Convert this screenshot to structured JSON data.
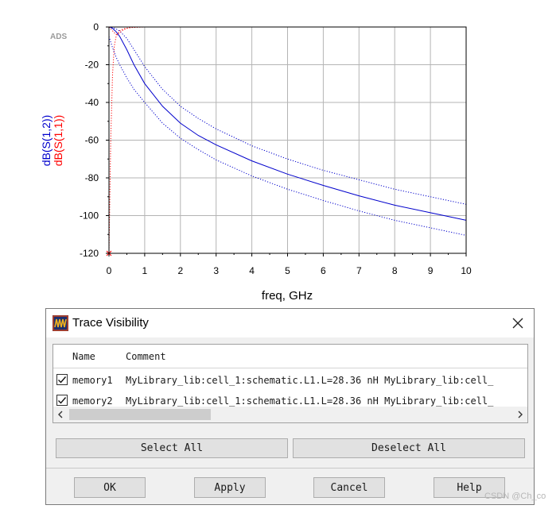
{
  "chart_data": {
    "type": "line",
    "watermark": "ADS",
    "xlabel": "freq, GHz",
    "ylabels": [
      "dB(S(1,2))",
      "dB(S(1,1))"
    ],
    "xlim": [
      0,
      10
    ],
    "ylim": [
      -120,
      0
    ],
    "x_ticks": [
      "0",
      "1",
      "2",
      "3",
      "4",
      "5",
      "6",
      "7",
      "8",
      "9",
      "10"
    ],
    "y_ticks": [
      "0",
      "-20",
      "-40",
      "-60",
      "-80",
      "-100",
      "-120"
    ],
    "grid": true,
    "series": [
      {
        "name": "dB(S(1,2))",
        "color": "#0000cc",
        "style": "solid",
        "x": [
          0,
          0.05,
          0.1,
          0.2,
          0.3,
          0.5,
          0.7,
          1,
          1.5,
          2,
          2.5,
          3,
          4,
          5,
          6,
          7,
          8,
          9,
          10
        ],
        "y": [
          0,
          -0.2,
          -0.7,
          -2.5,
          -5,
          -12,
          -20,
          -30,
          -42,
          -51,
          -57.5,
          -62.5,
          -71,
          -78,
          -84,
          -89.5,
          -94.5,
          -98.5,
          -102.5
        ]
      },
      {
        "name": "dB(S(1,2)) memory1",
        "color": "#0000cc",
        "style": "dotted",
        "x": [
          0,
          0.05,
          0.1,
          0.2,
          0.3,
          0.5,
          0.7,
          1,
          1.5,
          2,
          2.5,
          3,
          4,
          5,
          6,
          7,
          8,
          9,
          10
        ],
        "y": [
          0,
          -0.1,
          -0.3,
          -1.0,
          -2.2,
          -6,
          -12,
          -21,
          -33,
          -42,
          -48.5,
          -54,
          -63,
          -70,
          -76,
          -81,
          -86,
          -90,
          -94
        ]
      },
      {
        "name": "dB(S(1,2)) memory2",
        "color": "#0000cc",
        "style": "dotted",
        "x": [
          0,
          0.05,
          0.1,
          0.2,
          0.3,
          0.5,
          0.7,
          1,
          1.5,
          2,
          2.5,
          3,
          4,
          5,
          6,
          7,
          8,
          9,
          10
        ],
        "y": [
          -5,
          -8,
          -11,
          -16,
          -20,
          -27,
          -33,
          -40,
          -51,
          -59,
          -65,
          -70.5,
          -79,
          -86,
          -92,
          -97.5,
          -102.5,
          -106.5,
          -110.5
        ]
      },
      {
        "name": "dB(S(1,1))",
        "color": "#ff0000",
        "style": "solid",
        "x": [
          0,
          0.1,
          0.2,
          0.3,
          0.4,
          0.6,
          1,
          2,
          4,
          6,
          8,
          10
        ],
        "y": [
          0,
          0,
          0,
          0,
          0,
          0,
          0,
          0,
          0,
          0,
          0,
          0
        ]
      },
      {
        "name": "dB(S(1,1)) memory1",
        "color": "#ff0000",
        "style": "dotted",
        "x": [
          0,
          0.05,
          0.1,
          0.15,
          0.2,
          0.3,
          0.4,
          0.6,
          1,
          10
        ],
        "y": [
          -120,
          -60,
          -25,
          -10,
          -5,
          -2,
          -1,
          -0.3,
          0,
          0
        ]
      },
      {
        "name": "dB(S(1,1)) memory2",
        "color": "#ff0000",
        "style": "dotted",
        "x": [
          0,
          0.1,
          0.2,
          0.3,
          0.4,
          0.5,
          0.6,
          0.8,
          1,
          10
        ],
        "y": [
          0,
          -2,
          -4,
          -3,
          -1.5,
          -0.7,
          -0.3,
          0,
          0,
          0
        ]
      }
    ]
  },
  "dialog": {
    "title": "Trace Visibility",
    "columns": {
      "name": "Name",
      "comment": "Comment"
    },
    "rows": [
      {
        "name": "memory1",
        "comment": "MyLibrary_lib:cell_1:schematic.L1.L=28.36 nH MyLibrary_lib:cell_",
        "checked": true
      },
      {
        "name": "memory2",
        "comment": "MyLibrary_lib:cell_1:schematic.L1.L=28.36 nH MyLibrary_lib:cell_",
        "checked": true
      }
    ],
    "select_all": "Select All",
    "deselect_all": "Deselect All",
    "ok": "OK",
    "apply": "Apply",
    "cancel": "Cancel",
    "help": "Help"
  },
  "watermark": "CSDN @Ch_co"
}
